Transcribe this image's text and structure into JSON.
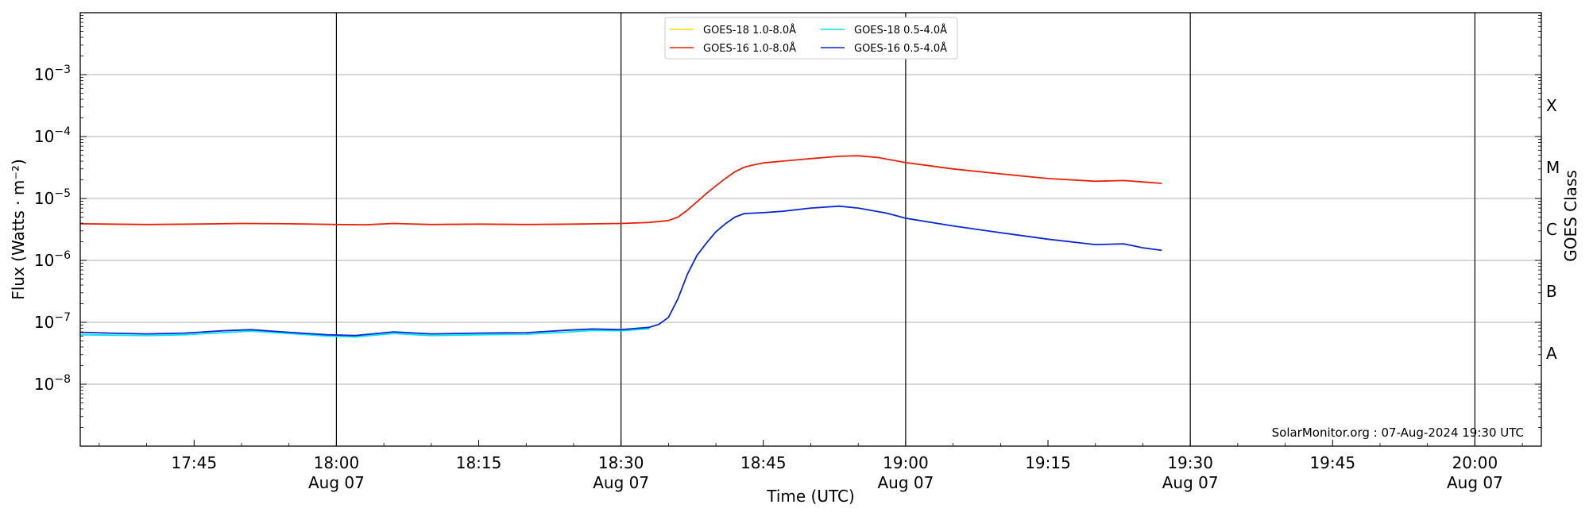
{
  "chart_data": {
    "type": "line",
    "title": "",
    "xlabel": "Time (UTC)",
    "ylabel": "Flux (Watts · m⁻²)",
    "y2label": "GOES Class",
    "yscale": "log",
    "xlim": [
      "17:33",
      "20:07"
    ],
    "ylim": [
      1e-09,
      0.01
    ],
    "grid": "horizontal at decades",
    "legend_position": "top-center",
    "credit": "SolarMonitor.org : 07-Aug-2024 19:30 UTC",
    "x_ticks": [
      {
        "time": "17:45",
        "date": ""
      },
      {
        "time": "18:00",
        "date": "Aug 07"
      },
      {
        "time": "18:15",
        "date": ""
      },
      {
        "time": "18:30",
        "date": "Aug 07"
      },
      {
        "time": "18:45",
        "date": ""
      },
      {
        "time": "19:00",
        "date": "Aug 07"
      },
      {
        "time": "19:15",
        "date": ""
      },
      {
        "time": "19:30",
        "date": "Aug 07"
      },
      {
        "time": "19:45",
        "date": ""
      },
      {
        "time": "20:00",
        "date": "Aug 07"
      }
    ],
    "vlines": [
      "18:00",
      "18:30",
      "19:00",
      "19:30",
      "20:00"
    ],
    "y_ticks": [
      {
        "exp": -8,
        "label_base": "10",
        "label_exp": "−8"
      },
      {
        "exp": -7,
        "label_base": "10",
        "label_exp": "−7"
      },
      {
        "exp": -6,
        "label_base": "10",
        "label_exp": "−6"
      },
      {
        "exp": -5,
        "label_base": "10",
        "label_exp": "−5"
      },
      {
        "exp": -4,
        "label_base": "10",
        "label_exp": "−4"
      },
      {
        "exp": -3,
        "label_base": "10",
        "label_exp": "−3"
      }
    ],
    "goes_classes": [
      {
        "label": "A",
        "exp": -7.5
      },
      {
        "label": "B",
        "exp": -6.5
      },
      {
        "label": "C",
        "exp": -5.5
      },
      {
        "label": "M",
        "exp": -4.5
      },
      {
        "label": "X",
        "exp": -3.5
      }
    ],
    "series": [
      {
        "name": "GOES-18 1.0-8.0Å",
        "color": "#ffd700",
        "x": [],
        "y": []
      },
      {
        "name": "GOES-18 0.5-4.0Å",
        "color": "#00e5ee",
        "x": [
          "17:33",
          "17:36",
          "17:40",
          "17:44",
          "17:48",
          "17:51",
          "17:55",
          "17:59",
          "18:02",
          "18:06",
          "18:10",
          "18:15",
          "18:20",
          "18:24",
          "18:27",
          "18:30",
          "18:33"
        ],
        "y": [
          6.3e-08,
          6.2e-08,
          6.1e-08,
          6.3e-08,
          6.8e-08,
          7.2e-08,
          6.6e-08,
          6e-08,
          5.8e-08,
          6.6e-08,
          6.1e-08,
          6.3e-08,
          6.4e-08,
          6.9e-08,
          7.4e-08,
          7.3e-08,
          7.9e-08
        ]
      },
      {
        "name": "GOES-16 1.0-8.0Å",
        "color": "#e8220a",
        "x": [
          "17:33",
          "17:40",
          "17:45",
          "17:50",
          "17:55",
          "18:00",
          "18:03",
          "18:06",
          "18:10",
          "18:15",
          "18:20",
          "18:25",
          "18:30",
          "18:33",
          "18:35",
          "18:36",
          "18:37",
          "18:38",
          "18:39",
          "18:40",
          "18:41",
          "18:42",
          "18:43",
          "18:44",
          "18:45",
          "18:47",
          "18:50",
          "18:53",
          "18:55",
          "18:57",
          "19:00",
          "19:05",
          "19:10",
          "19:15",
          "19:20",
          "19:23",
          "19:25",
          "19:27"
        ],
        "y": [
          3.9e-06,
          3.8e-06,
          3.85e-06,
          3.95e-06,
          3.9e-06,
          3.8e-06,
          3.75e-06,
          3.95e-06,
          3.8e-06,
          3.85e-06,
          3.8e-06,
          3.85e-06,
          3.95e-06,
          4.1e-06,
          4.4e-06,
          5e-06,
          6.5e-06,
          8.8e-06,
          1.2e-05,
          1.6e-05,
          2.1e-05,
          2.7e-05,
          3.2e-05,
          3.5e-05,
          3.75e-05,
          4e-05,
          4.4e-05,
          4.8e-05,
          4.9e-05,
          4.6e-05,
          3.8e-05,
          3e-05,
          2.5e-05,
          2.1e-05,
          1.9e-05,
          1.95e-05,
          1.85e-05,
          1.75e-05
        ]
      },
      {
        "name": "GOES-16 0.5-4.0Å",
        "color": "#0a28d2",
        "x": [
          "17:33",
          "17:36",
          "17:40",
          "17:44",
          "17:48",
          "17:51",
          "17:55",
          "17:59",
          "18:02",
          "18:06",
          "18:10",
          "18:15",
          "18:20",
          "18:24",
          "18:27",
          "18:30",
          "18:33",
          "18:34",
          "18:35",
          "18:36",
          "18:37",
          "18:38",
          "18:39",
          "18:40",
          "18:41",
          "18:42",
          "18:43",
          "18:45",
          "18:47",
          "18:50",
          "18:53",
          "18:55",
          "18:58",
          "19:00",
          "19:05",
          "19:10",
          "19:15",
          "19:20",
          "19:23",
          "19:25",
          "19:27"
        ],
        "y": [
          6.9e-08,
          6.7e-08,
          6.5e-08,
          6.7e-08,
          7.3e-08,
          7.6e-08,
          6.9e-08,
          6.3e-08,
          6.1e-08,
          7e-08,
          6.5e-08,
          6.7e-08,
          6.8e-08,
          7.4e-08,
          7.8e-08,
          7.6e-08,
          8.3e-08,
          9.3e-08,
          1.2e-07,
          2.4e-07,
          6e-07,
          1.2e-06,
          1.9e-06,
          2.9e-06,
          3.9e-06,
          5e-06,
          5.7e-06,
          5.9e-06,
          6.2e-06,
          7e-06,
          7.5e-06,
          7e-06,
          5.8e-06,
          4.8e-06,
          3.6e-06,
          2.8e-06,
          2.2e-06,
          1.8e-06,
          1.85e-06,
          1.6e-06,
          1.45e-06
        ]
      }
    ]
  }
}
